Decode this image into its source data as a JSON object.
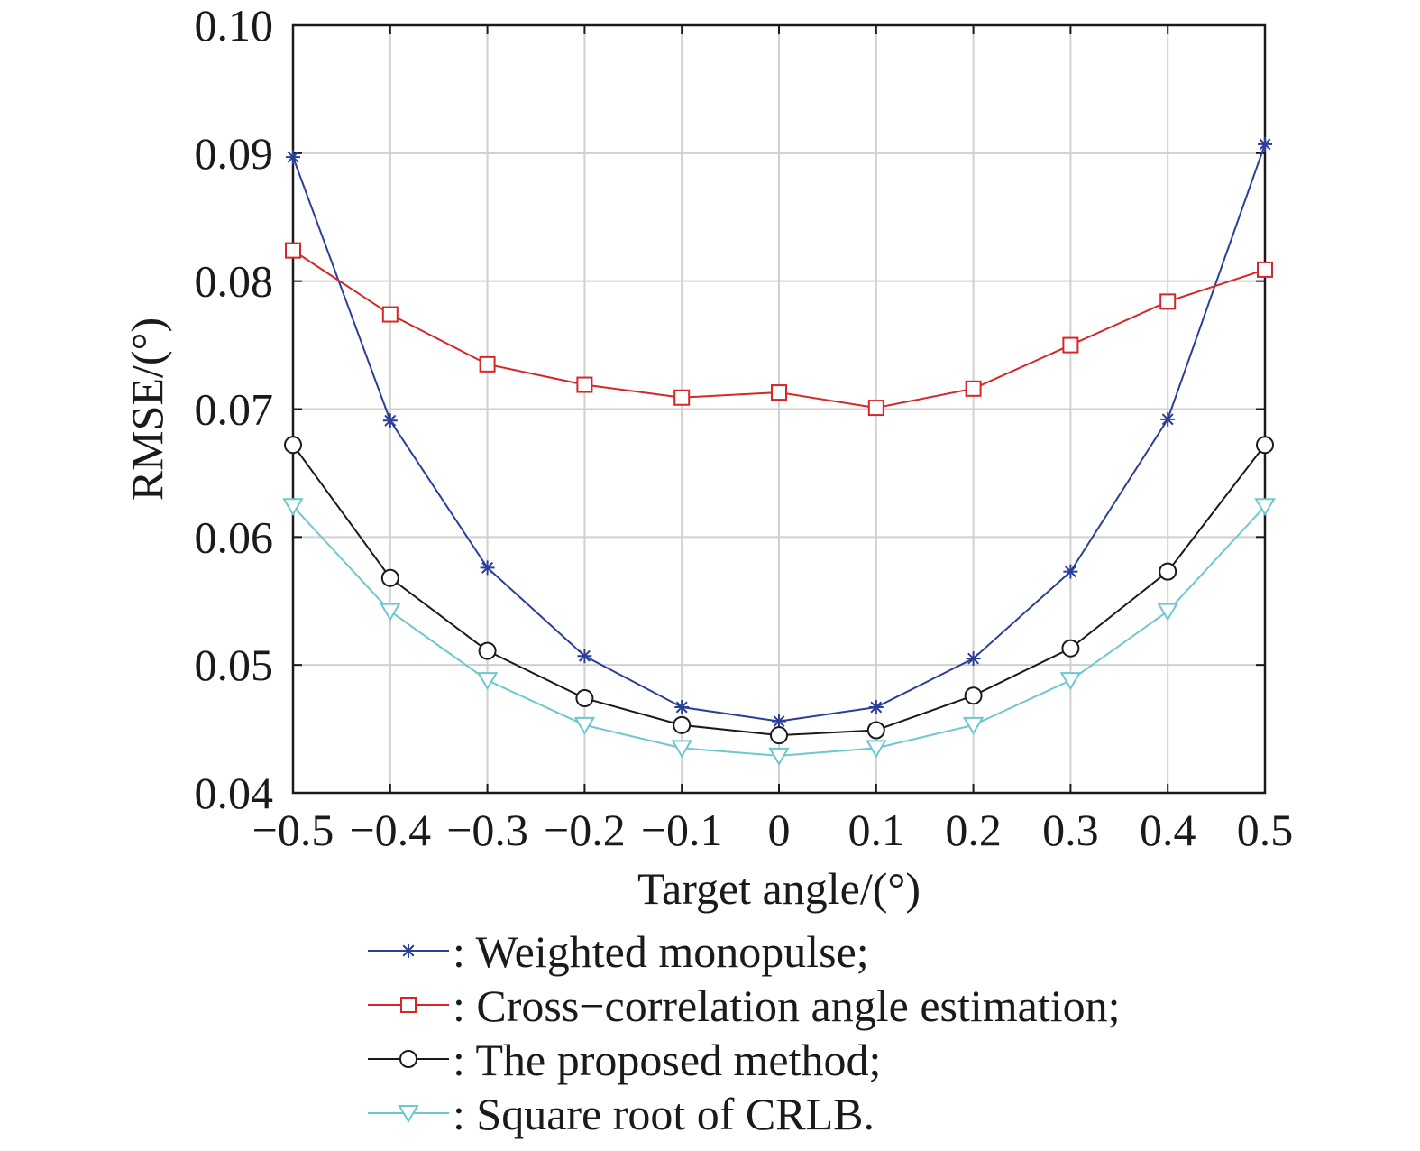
{
  "chart_data": {
    "type": "line",
    "title": "",
    "xlabel": "Target angle/(°)",
    "ylabel": "RMSE/(°)",
    "xlim": [
      -0.5,
      0.5
    ],
    "ylim": [
      0.04,
      0.1
    ],
    "grid": true,
    "legend_position": "bottom",
    "x": [
      -0.5,
      -0.4,
      -0.3,
      -0.2,
      -0.1,
      0,
      0.1,
      0.2,
      0.3,
      0.4,
      0.5
    ],
    "x_tick_labels": [
      "−0.5",
      "−0.4",
      "−0.3",
      "−0.2",
      "−0.1",
      "0",
      "0.1",
      "0.2",
      "0.3",
      "0.4",
      "0.5"
    ],
    "y_ticks": [
      0.04,
      0.05,
      0.06,
      0.07,
      0.08,
      0.09,
      0.1
    ],
    "y_tick_labels": [
      "0.04",
      "0.05",
      "0.06",
      "0.07",
      "0.08",
      "0.09",
      "0.10"
    ],
    "series": [
      {
        "name": ": Weighted monopulse;",
        "color": "#2b3f99",
        "marker": "asterisk",
        "values": [
          0.0897,
          0.0691,
          0.0576,
          0.0507,
          0.0467,
          0.0456,
          0.0467,
          0.0505,
          0.0573,
          0.0692,
          0.0907
        ]
      },
      {
        "name": ": Cross−correlation angle estimation;",
        "color": "#d62728",
        "marker": "square",
        "values": [
          0.0824,
          0.0774,
          0.0735,
          0.0719,
          0.0709,
          0.0713,
          0.0701,
          0.0716,
          0.075,
          0.0784,
          0.0809
        ]
      },
      {
        "name": ": The proposed method;",
        "color": "#1a1a1a",
        "marker": "circle",
        "values": [
          0.0672,
          0.0568,
          0.0511,
          0.0474,
          0.0453,
          0.0445,
          0.0449,
          0.0476,
          0.0513,
          0.0573,
          0.0672
        ]
      },
      {
        "name": ": Square root of CRLB.",
        "color": "#6cc8cc",
        "marker": "triangle-down",
        "values": [
          0.0624,
          0.0542,
          0.0488,
          0.0453,
          0.0435,
          0.0429,
          0.0435,
          0.0453,
          0.0488,
          0.0542,
          0.0624
        ]
      }
    ]
  }
}
